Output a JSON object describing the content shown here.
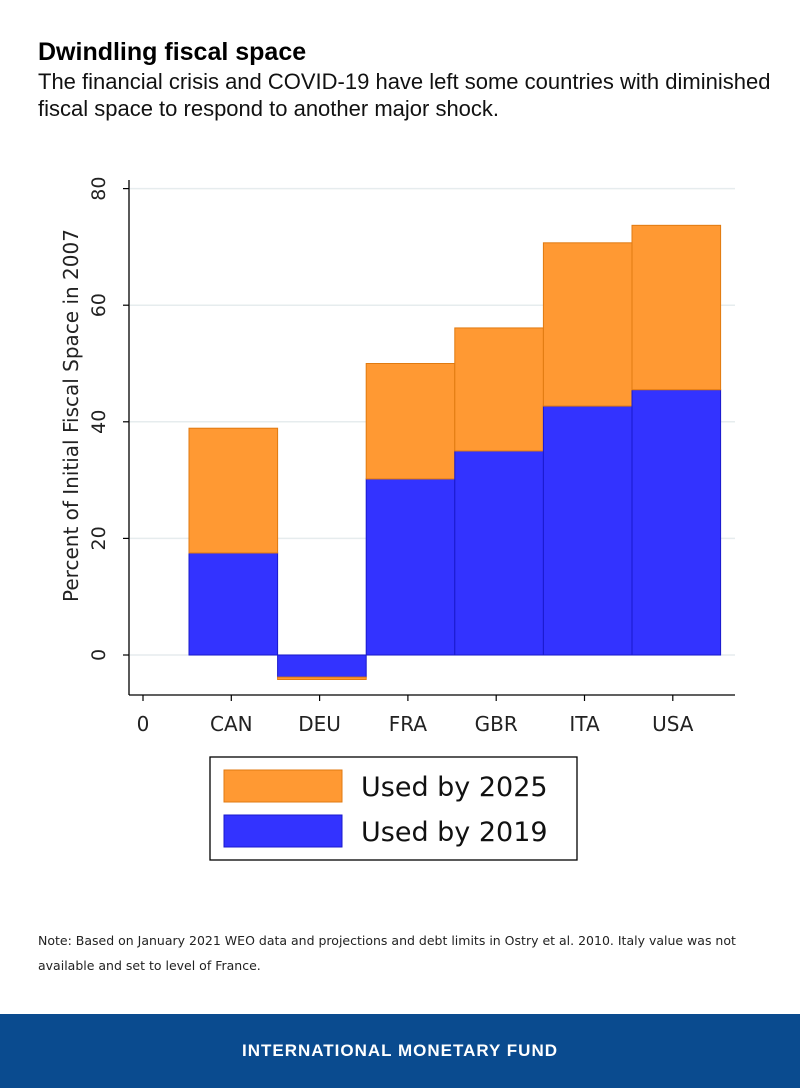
{
  "header": {
    "title": "Dwindling fiscal space",
    "subtitle": "The financial crisis and COVID-19 have left some countries with diminished fiscal space to respond to another major shock."
  },
  "chart_data": {
    "type": "bar",
    "stacked": true,
    "categories": [
      "CAN",
      "DEU",
      "FRA",
      "GBR",
      "ITA",
      "USA"
    ],
    "x_tick_labels": [
      "0",
      "CAN",
      "DEU",
      "FRA",
      "GBR",
      "ITA",
      "USA"
    ],
    "series": [
      {
        "name": "Used by 2019",
        "values": [
          17.5,
          -3.8,
          30.2,
          35.0,
          42.7,
          45.5
        ],
        "color": "#3333ff"
      },
      {
        "name": "Used by 2025",
        "values": [
          21.4,
          -0.4,
          19.8,
          21.1,
          28.0,
          28.2
        ],
        "color": "#ff9933"
      }
    ],
    "totals": [
      38.9,
      -4.2,
      50.0,
      56.1,
      70.7,
      73.7
    ],
    "ylabel": "Percent of Initial Fiscal Space in 2007",
    "xlabel": "",
    "ylim": [
      -7,
      85
    ],
    "yticks": [
      0,
      20,
      40,
      60,
      80
    ],
    "grid": true,
    "legend": {
      "position": "bottom",
      "order": [
        "Used by 2025",
        "Used by 2019"
      ]
    }
  },
  "note": "Note: Based on January 2021 WEO data and projections and debt limits in Ostry et al. 2010. Italy value was not available and set to level of France.",
  "footer": {
    "org": "INTERNATIONAL MONETARY FUND",
    "color": "#0a4b8f"
  }
}
